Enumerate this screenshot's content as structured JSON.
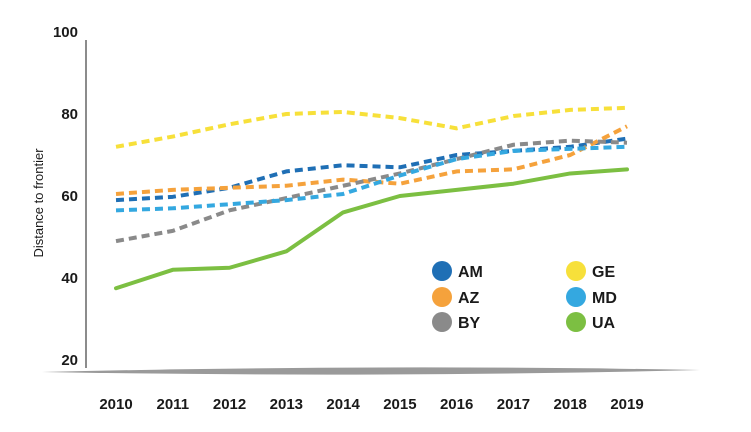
{
  "chart_data": {
    "type": "line",
    "title": "",
    "xlabel": "",
    "ylabel": "Distance to frontier",
    "x": [
      "2010",
      "2011",
      "2012",
      "2013",
      "2014",
      "2015",
      "2016",
      "2017",
      "2018",
      "2019"
    ],
    "yticks": [
      "20",
      "40",
      "60",
      "80",
      "100"
    ],
    "ylim": [
      20,
      100
    ],
    "legend_position": "lower-right, inside plot, two columns",
    "series": [
      {
        "name": "AM",
        "color": "#1f6fb5",
        "style": "dashed",
        "values": [
          59.0,
          59.8,
          62.0,
          66.0,
          67.5,
          67.0,
          70.0,
          71.0,
          72.0,
          74.0
        ]
      },
      {
        "name": "AZ",
        "color": "#f5a23c",
        "style": "dashed",
        "values": [
          60.5,
          61.5,
          62.0,
          62.5,
          64.0,
          63.0,
          66.0,
          66.5,
          70.0,
          77.0
        ]
      },
      {
        "name": "BY",
        "color": "#8a8a8a",
        "style": "dashed",
        "values": [
          49.0,
          51.5,
          56.5,
          59.5,
          62.5,
          65.5,
          69.0,
          72.5,
          73.5,
          73.0
        ]
      },
      {
        "name": "GE",
        "color": "#f7e03a",
        "style": "dashed",
        "values": [
          72.0,
          74.5,
          77.5,
          80.0,
          80.5,
          79.0,
          76.5,
          79.5,
          81.0,
          81.5
        ]
      },
      {
        "name": "MD",
        "color": "#34a8e0",
        "style": "dashed",
        "values": [
          56.5,
          57.0,
          58.0,
          59.0,
          60.5,
          65.0,
          69.0,
          71.0,
          71.5,
          72.0
        ]
      },
      {
        "name": "UA",
        "color": "#7cbf42",
        "style": "solid",
        "values": [
          37.5,
          42.0,
          42.5,
          46.5,
          56.0,
          60.0,
          61.5,
          63.0,
          65.5,
          66.5
        ]
      }
    ]
  }
}
